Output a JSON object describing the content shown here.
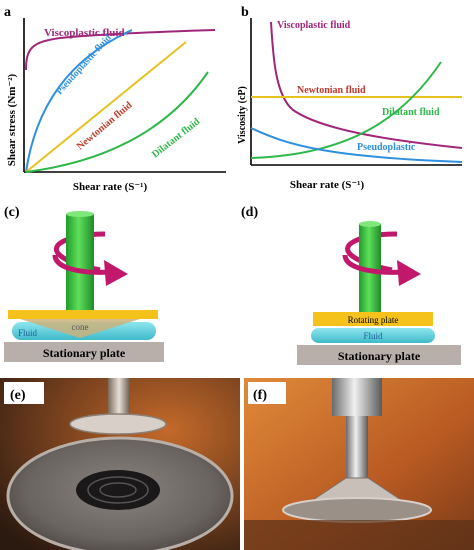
{
  "panels": {
    "a": {
      "letter": "a",
      "ylabel": "Shear stress (Nm⁻²)",
      "xlabel": "Shear rate (S⁻¹)",
      "curves": [
        {
          "label": "Viscoplastic fluid",
          "color": "#a0267a"
        },
        {
          "label": "Pseudoplastic fluid",
          "color": "#2f8fe0"
        },
        {
          "label": "Newtonian fluid",
          "color": "#e6c21f"
        },
        {
          "label": "Dilatant fluid",
          "color": "#2fb84a"
        }
      ]
    },
    "b": {
      "letter": "b",
      "ylabel": "Viscosity (cP)",
      "xlabel": "Shear rate (S⁻¹)",
      "curves": [
        {
          "label": "Viscoplastic fluid",
          "color": "#a0267a"
        },
        {
          "label": "Newtonian fluid",
          "color": "#e6c21f"
        },
        {
          "label": "Dilatant fluid",
          "color": "#2fb84a"
        },
        {
          "label": "Pseudoplastic",
          "color": "#2f8fe0"
        }
      ],
      "newtonian_label_color": "#c0392b"
    },
    "c": {
      "letter": "(c)",
      "cone_label": "cone",
      "fluid_label": "Fluid",
      "plate_label": "Stationary plate"
    },
    "d": {
      "letter": "(d)",
      "rotating_plate_label": "Rotating plate",
      "fluid_label": "Fluid",
      "plate_label": "Stationary plate"
    },
    "e": {
      "letter": "(e)"
    },
    "f": {
      "letter": "(f)"
    }
  },
  "colors": {
    "rod": "#2fbf3a",
    "arrow": "#c2186b",
    "yellow_plate": "#f4c21a",
    "fluid": "#5fd0de",
    "stationary_plate": "#b8aeaa"
  }
}
